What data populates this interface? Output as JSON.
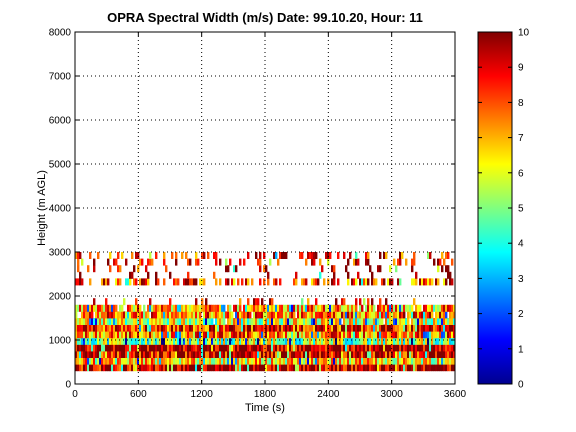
{
  "chart_data": {
    "type": "heatmap",
    "title": "OPRA Spectral Width (m/s)  Date: 99.10.20, Hour: 11",
    "xlabel": "Time (s)",
    "ylabel": "Height (m AGL)",
    "xlim": [
      0,
      3600
    ],
    "ylim": [
      0,
      8000
    ],
    "xticks": [
      "0",
      "600",
      "1200",
      "1800",
      "2400",
      "3000",
      "3600"
    ],
    "yticks": [
      "0",
      "1000",
      "2000",
      "3000",
      "4000",
      "5000",
      "6000",
      "7000",
      "8000"
    ],
    "grid": true,
    "colorbar": {
      "range": [
        0,
        10
      ],
      "ticks": [
        "0",
        "1",
        "2",
        "3",
        "4",
        "5",
        "6",
        "7",
        "8",
        "9",
        "10"
      ],
      "colormap": "jet",
      "position": "right"
    },
    "layers": [
      {
        "from_m": 300,
        "to_m": 450,
        "level": 9.6,
        "coverage": 1.0
      },
      {
        "from_m": 450,
        "to_m": 600,
        "level": 6.5,
        "coverage": 1.0
      },
      {
        "from_m": 600,
        "to_m": 750,
        "level": 9.3,
        "coverage": 1.0
      },
      {
        "from_m": 750,
        "to_m": 900,
        "level": 9.8,
        "coverage": 1.0
      },
      {
        "from_m": 900,
        "to_m": 1050,
        "level": 5.2,
        "coverage": 1.0
      },
      {
        "from_m": 1050,
        "to_m": 1200,
        "level": 7.5,
        "coverage": 1.0
      },
      {
        "from_m": 1200,
        "to_m": 1350,
        "level": 8.6,
        "coverage": 1.0
      },
      {
        "from_m": 1350,
        "to_m": 1500,
        "level": 5.8,
        "coverage": 0.98
      },
      {
        "from_m": 1500,
        "to_m": 1650,
        "level": 7.8,
        "coverage": 0.95
      },
      {
        "from_m": 1650,
        "to_m": 1800,
        "level": 7.2,
        "coverage": 0.9
      },
      {
        "from_m": 1800,
        "to_m": 1950,
        "level": 8.8,
        "coverage": 0.12
      },
      {
        "from_m": 2250,
        "to_m": 2400,
        "level": 8.3,
        "coverage": 0.55
      },
      {
        "from_m": 2400,
        "to_m": 2550,
        "level": 9.5,
        "coverage": 0.08
      },
      {
        "from_m": 2550,
        "to_m": 2700,
        "level": 9.3,
        "coverage": 0.18
      },
      {
        "from_m": 2700,
        "to_m": 2850,
        "level": 9.2,
        "coverage": 0.22
      },
      {
        "from_m": 2850,
        "to_m": 3000,
        "level": 8.8,
        "coverage": 0.28
      }
    ]
  }
}
